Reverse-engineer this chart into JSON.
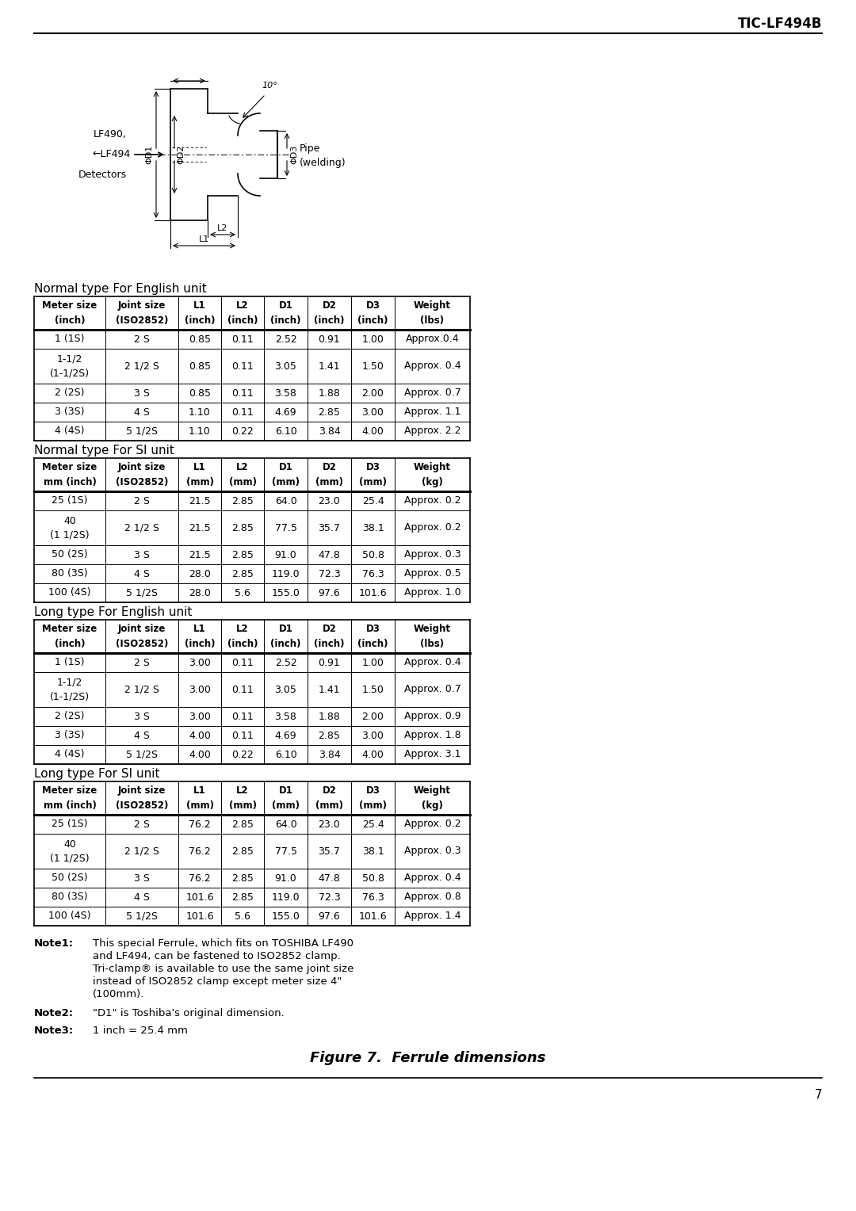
{
  "header_text": "TIC-LF494B",
  "page_number": "7",
  "figure_caption": "Figure 7.  Ferrule dimensions",
  "diagram": {
    "detector_label": [
      "LF490,",
      "←LF494",
      "Detectors"
    ],
    "pipe_label": [
      "Pipe",
      "(welding)"
    ],
    "d1": "ΦD1",
    "d2": "ΦD2",
    "d3": "ΦD3",
    "l1": "L1",
    "l2": "L2",
    "angle": "10°"
  },
  "table1_title": "Normal type For English unit",
  "table1_headers_row1": [
    "Meter size",
    "Joint size",
    "L1",
    "L2",
    "D1",
    "D2",
    "D3",
    "Weight"
  ],
  "table1_headers_row2": [
    "(inch)",
    "(ISO2852)",
    "(inch)",
    "(inch)",
    "(inch)",
    "(inch)",
    "(inch)",
    "(lbs)"
  ],
  "table1_data": [
    [
      "1 (1S)",
      "2 S",
      "0.85",
      "0.11",
      "2.52",
      "0.91",
      "1.00",
      "Approx.0.4"
    ],
    [
      "1-1/2\n(1-1/2S)",
      "2 1/2 S",
      "0.85",
      "0.11",
      "3.05",
      "1.41",
      "1.50",
      "Approx. 0.4"
    ],
    [
      "2 (2S)",
      "3 S",
      "0.85",
      "0.11",
      "3.58",
      "1.88",
      "2.00",
      "Approx. 0.7"
    ],
    [
      "3 (3S)",
      "4 S",
      "1.10",
      "0.11",
      "4.69",
      "2.85",
      "3.00",
      "Approx. 1.1"
    ],
    [
      "4 (4S)",
      "5 1/2S",
      "1.10",
      "0.22",
      "6.10",
      "3.84",
      "4.00",
      "Approx. 2.2"
    ]
  ],
  "table2_title": "Normal type For SI unit",
  "table2_headers_row1": [
    "Meter size",
    "Joint size",
    "L1",
    "L2",
    "D1",
    "D2",
    "D3",
    "Weight"
  ],
  "table2_headers_row2": [
    "mm (inch)",
    "(ISO2852)",
    "(mm)",
    "(mm)",
    "(mm)",
    "(mm)",
    "(mm)",
    "(kg)"
  ],
  "table2_data": [
    [
      "25 (1S)",
      "2 S",
      "21.5",
      "2.85",
      "64.0",
      "23.0",
      "25.4",
      "Approx. 0.2"
    ],
    [
      "40\n(1 1/2S)",
      "2 1/2 S",
      "21.5",
      "2.85",
      "77.5",
      "35.7",
      "38.1",
      "Approx. 0.2"
    ],
    [
      "50 (2S)",
      "3 S",
      "21.5",
      "2.85",
      "91.0",
      "47.8",
      "50.8",
      "Approx. 0.3"
    ],
    [
      "80 (3S)",
      "4 S",
      "28.0",
      "2.85",
      "119.0",
      "72.3",
      "76.3",
      "Approx. 0.5"
    ],
    [
      "100 (4S)",
      "5 1/2S",
      "28.0",
      "5.6",
      "155.0",
      "97.6",
      "101.6",
      "Approx. 1.0"
    ]
  ],
  "table3_title": "Long type For English unit",
  "table3_headers_row1": [
    "Meter size",
    "Joint size",
    "L1",
    "L2",
    "D1",
    "D2",
    "D3",
    "Weight"
  ],
  "table3_headers_row2": [
    "(inch)",
    "(ISO2852)",
    "(inch)",
    "(inch)",
    "(inch)",
    "(inch)",
    "(inch)",
    "(lbs)"
  ],
  "table3_data": [
    [
      "1 (1S)",
      "2 S",
      "3.00",
      "0.11",
      "2.52",
      "0.91",
      "1.00",
      "Approx. 0.4"
    ],
    [
      "1-1/2\n(1-1/2S)",
      "2 1/2 S",
      "3.00",
      "0.11",
      "3.05",
      "1.41",
      "1.50",
      "Approx. 0.7"
    ],
    [
      "2 (2S)",
      "3 S",
      "3.00",
      "0.11",
      "3.58",
      "1.88",
      "2.00",
      "Approx. 0.9"
    ],
    [
      "3 (3S)",
      "4 S",
      "4.00",
      "0.11",
      "4.69",
      "2.85",
      "3.00",
      "Approx. 1.8"
    ],
    [
      "4 (4S)",
      "5 1/2S",
      "4.00",
      "0.22",
      "6.10",
      "3.84",
      "4.00",
      "Approx. 3.1"
    ]
  ],
  "table4_title": "Long type For SI unit",
  "table4_headers_row1": [
    "Meter size",
    "Joint size",
    "L1",
    "L2",
    "D1",
    "D2",
    "D3",
    "Weight"
  ],
  "table4_headers_row2": [
    "mm (inch)",
    "(ISO2852)",
    "(mm)",
    "(mm)",
    "(mm)",
    "(mm)",
    "(mm)",
    "(kg)"
  ],
  "table4_data": [
    [
      "25 (1S)",
      "2 S",
      "76.2",
      "2.85",
      "64.0",
      "23.0",
      "25.4",
      "Approx. 0.2"
    ],
    [
      "40\n(1 1/2S)",
      "2 1/2 S",
      "76.2",
      "2.85",
      "77.5",
      "35.7",
      "38.1",
      "Approx. 0.3"
    ],
    [
      "50 (2S)",
      "3 S",
      "76.2",
      "2.85",
      "91.0",
      "47.8",
      "50.8",
      "Approx. 0.4"
    ],
    [
      "80 (3S)",
      "4 S",
      "101.6",
      "2.85",
      "119.0",
      "72.3",
      "76.3",
      "Approx. 0.8"
    ],
    [
      "100 (4S)",
      "5 1/2S",
      "101.6",
      "5.6",
      "155.0",
      "97.6",
      "101.6",
      "Approx. 1.4"
    ]
  ],
  "note1_label": "Note1:",
  "note1_lines": [
    "This special Ferrule, which fits on TOSHIBA LF490",
    "and LF494, can be fastened to ISO2852 clamp.",
    "Tri-clamp® is available to use the same joint size",
    "instead of ISO2852 clamp except meter size 4\"",
    "(100mm)."
  ],
  "note2_label": "Note2:",
  "note2_text": "\"D1\" is Toshiba's original dimension.",
  "note3_label": "Note3:",
  "note3_text": "1 inch = 25.4 mm"
}
